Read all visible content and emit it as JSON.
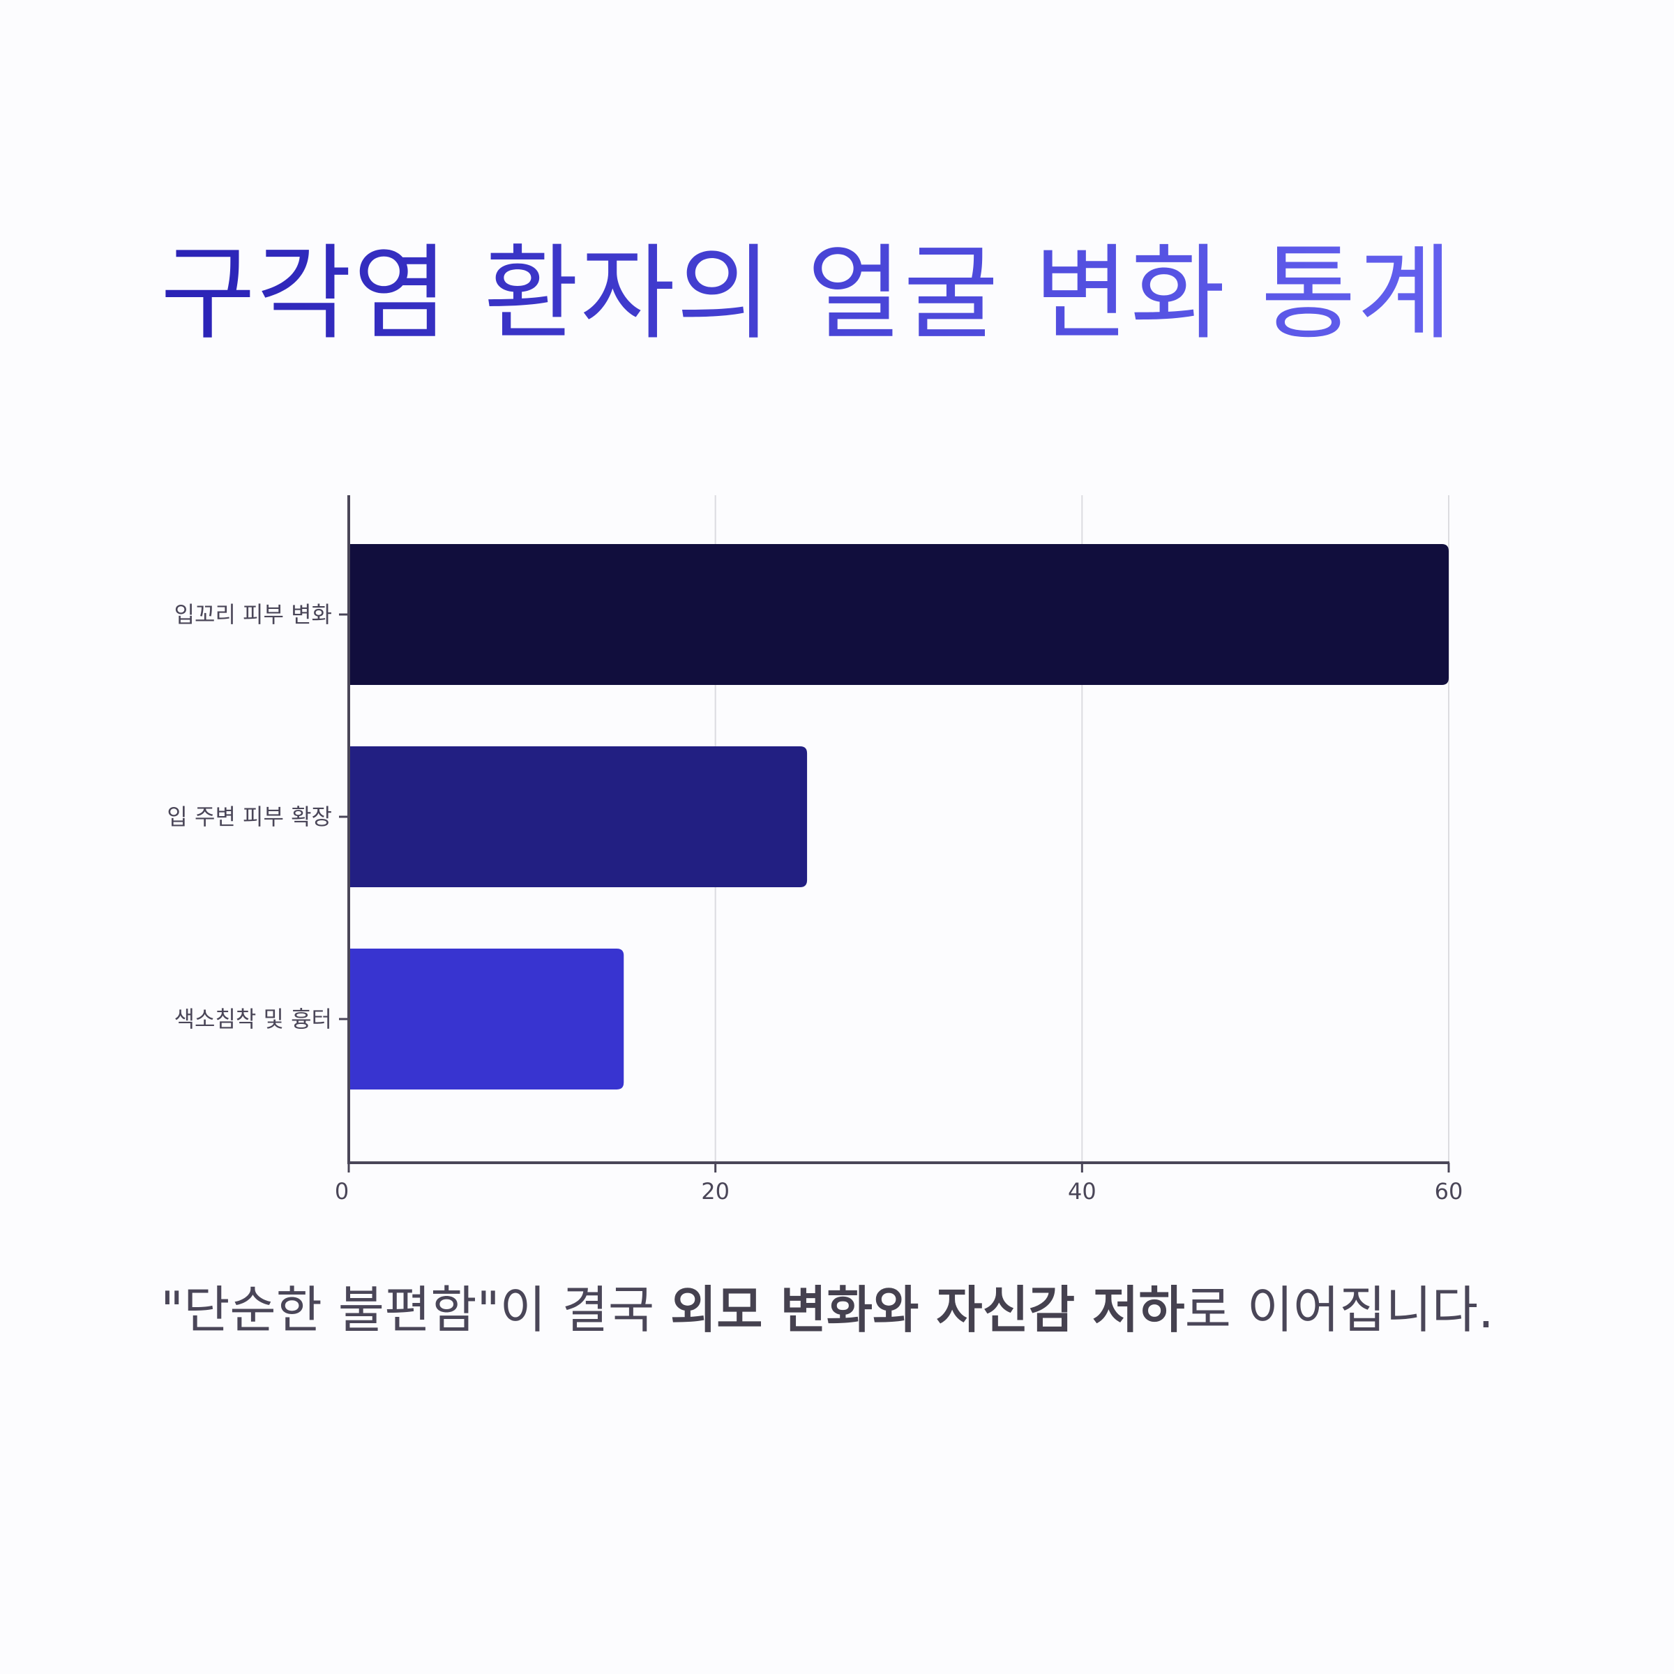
{
  "title": "구각염 환자의 얼굴 변화 통계",
  "caption": {
    "part1": "\"단순한 불편함\"이 결국 ",
    "bold": "외모 변화와 자신감 저하",
    "part2": "로 이어집니다."
  },
  "colors": {
    "background": "#fcfcfe",
    "title_start": "#2a22b5",
    "title_end": "#6360ee",
    "axis": "#4a4658",
    "grid": "#dcdce0",
    "text": "#4a4658"
  },
  "chart_data": {
    "type": "bar",
    "orientation": "horizontal",
    "categories": [
      "입꼬리 피부 변화",
      "입 주변 피부 확장",
      "색소침착 및 흉터"
    ],
    "values": [
      60,
      25,
      15
    ],
    "bar_colors": [
      "#110e3d",
      "#221f82",
      "#3834d0"
    ],
    "xlim": [
      0,
      60
    ],
    "xticks": [
      0,
      20,
      40,
      60
    ],
    "grid": "vertical",
    "legend": "none"
  }
}
